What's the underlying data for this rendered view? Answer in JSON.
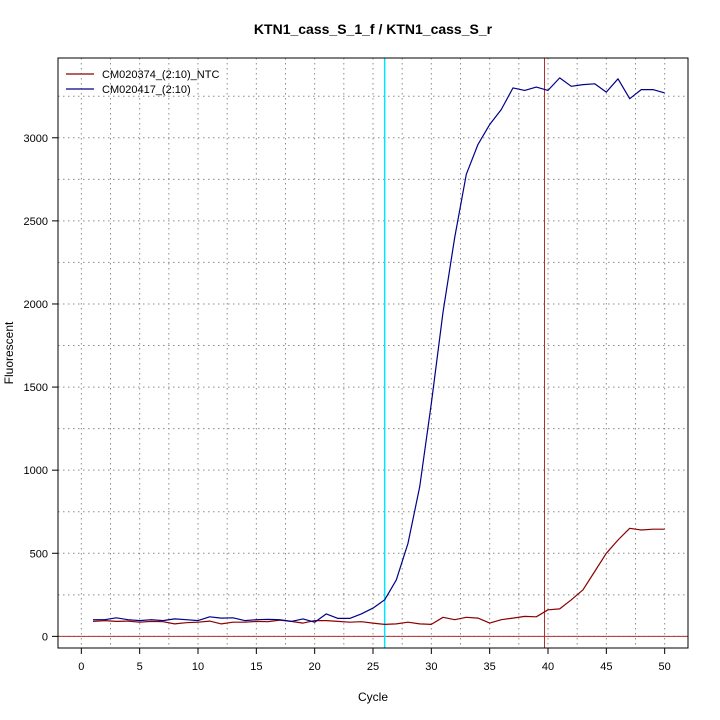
{
  "chart_data": {
    "type": "line",
    "title": "KTN1_cass_S_1_f / KTN1_cass_S_r",
    "xlabel": "Cycle",
    "ylabel": "Fluorescent",
    "xlim": [
      -2,
      52
    ],
    "ylim": [
      -70,
      3480
    ],
    "xticks": [
      0,
      5,
      10,
      15,
      20,
      25,
      30,
      35,
      40,
      45,
      50
    ],
    "yticks": [
      0,
      500,
      1000,
      1500,
      2000,
      2500,
      3000
    ],
    "grid": true,
    "legend_position": "top-left",
    "threshold_y": 0,
    "vertical_markers": [
      {
        "x": 26,
        "color": "#00e5ff"
      },
      {
        "x": 39.7,
        "color": "#b03030"
      }
    ],
    "series": [
      {
        "name": "CM020374_(2:10)_NTC",
        "color": "#8b0000",
        "x": [
          1,
          2,
          3,
          4,
          5,
          6,
          7,
          8,
          9,
          10,
          11,
          12,
          13,
          14,
          15,
          16,
          17,
          18,
          19,
          20,
          21,
          22,
          23,
          24,
          25,
          26,
          27,
          28,
          29,
          30,
          31,
          32,
          33,
          34,
          35,
          36,
          37,
          38,
          39,
          40,
          41,
          42,
          43,
          44,
          45,
          46,
          47,
          48,
          49,
          50
        ],
        "values": [
          90,
          95,
          90,
          92,
          85,
          90,
          88,
          75,
          82,
          85,
          92,
          75,
          85,
          85,
          90,
          88,
          98,
          90,
          80,
          95,
          95,
          90,
          85,
          88,
          80,
          72,
          75,
          85,
          75,
          72,
          115,
          100,
          115,
          110,
          80,
          100,
          110,
          120,
          118,
          160,
          165,
          220,
          280,
          390,
          500,
          580,
          650,
          640,
          645,
          645
        ]
      },
      {
        "name": "CM020417_(2:10)",
        "color": "#00008b",
        "x": [
          1,
          2,
          3,
          4,
          5,
          6,
          7,
          8,
          9,
          10,
          11,
          12,
          13,
          14,
          15,
          16,
          17,
          18,
          19,
          20,
          21,
          22,
          23,
          24,
          25,
          26,
          27,
          28,
          29,
          30,
          31,
          32,
          33,
          34,
          35,
          36,
          37,
          38,
          39,
          40,
          41,
          42,
          43,
          44,
          45,
          46,
          47,
          48,
          49,
          50
        ],
        "values": [
          100,
          100,
          112,
          100,
          95,
          100,
          95,
          105,
          100,
          95,
          118,
          110,
          112,
          95,
          100,
          102,
          100,
          90,
          105,
          85,
          135,
          108,
          108,
          135,
          170,
          220,
          340,
          560,
          900,
          1400,
          1950,
          2400,
          2780,
          2960,
          3080,
          3170,
          3300,
          3285,
          3305,
          3285,
          3360,
          3310,
          3320,
          3325,
          3275,
          3355,
          3235,
          3290,
          3290,
          3270
        ]
      }
    ]
  }
}
